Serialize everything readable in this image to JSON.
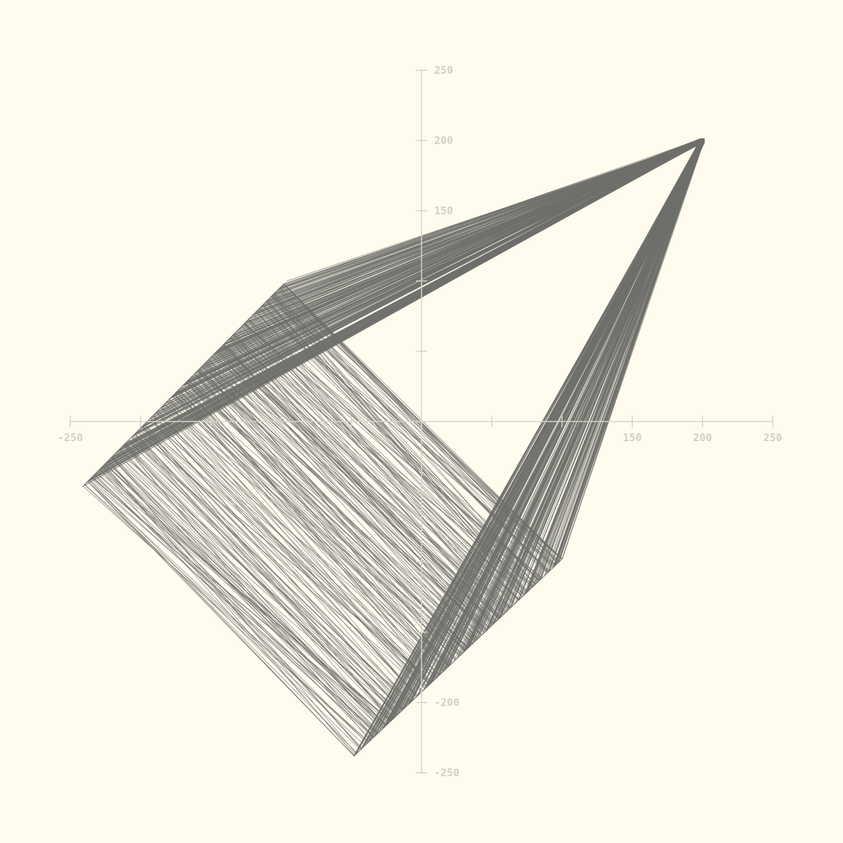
{
  "colors": {
    "background": "#fffcef",
    "axis": "#d6d3c8",
    "tick_label": "#d2cfc4",
    "line": "#6f6f6b"
  },
  "chart_data": {
    "type": "line",
    "title": "",
    "xlabel": "",
    "ylabel": "",
    "xlim": [
      -250,
      250
    ],
    "ylim": [
      -250,
      250
    ],
    "grid": false,
    "x_ticks": [
      -250,
      -200,
      -150,
      -100,
      -50,
      0,
      50,
      100,
      150,
      200,
      250
    ],
    "y_ticks": [
      -250,
      -200,
      -150,
      -100,
      -50,
      0,
      50,
      100,
      150,
      200,
      250
    ],
    "x_tick_labels_visible": [
      "-250",
      "150",
      "200",
      "250"
    ],
    "y_tick_labels_visible": [
      "250",
      "200",
      "150",
      "-200",
      "-250"
    ],
    "apex": [
      200,
      200
    ],
    "upper_left_edge": {
      "from": [
        -240,
        -45
      ],
      "to": [
        -98,
        98
      ]
    },
    "lower_right_edge": {
      "from": [
        -48,
        -238
      ],
      "to": [
        100,
        -98
      ]
    },
    "description_count": 480
  }
}
